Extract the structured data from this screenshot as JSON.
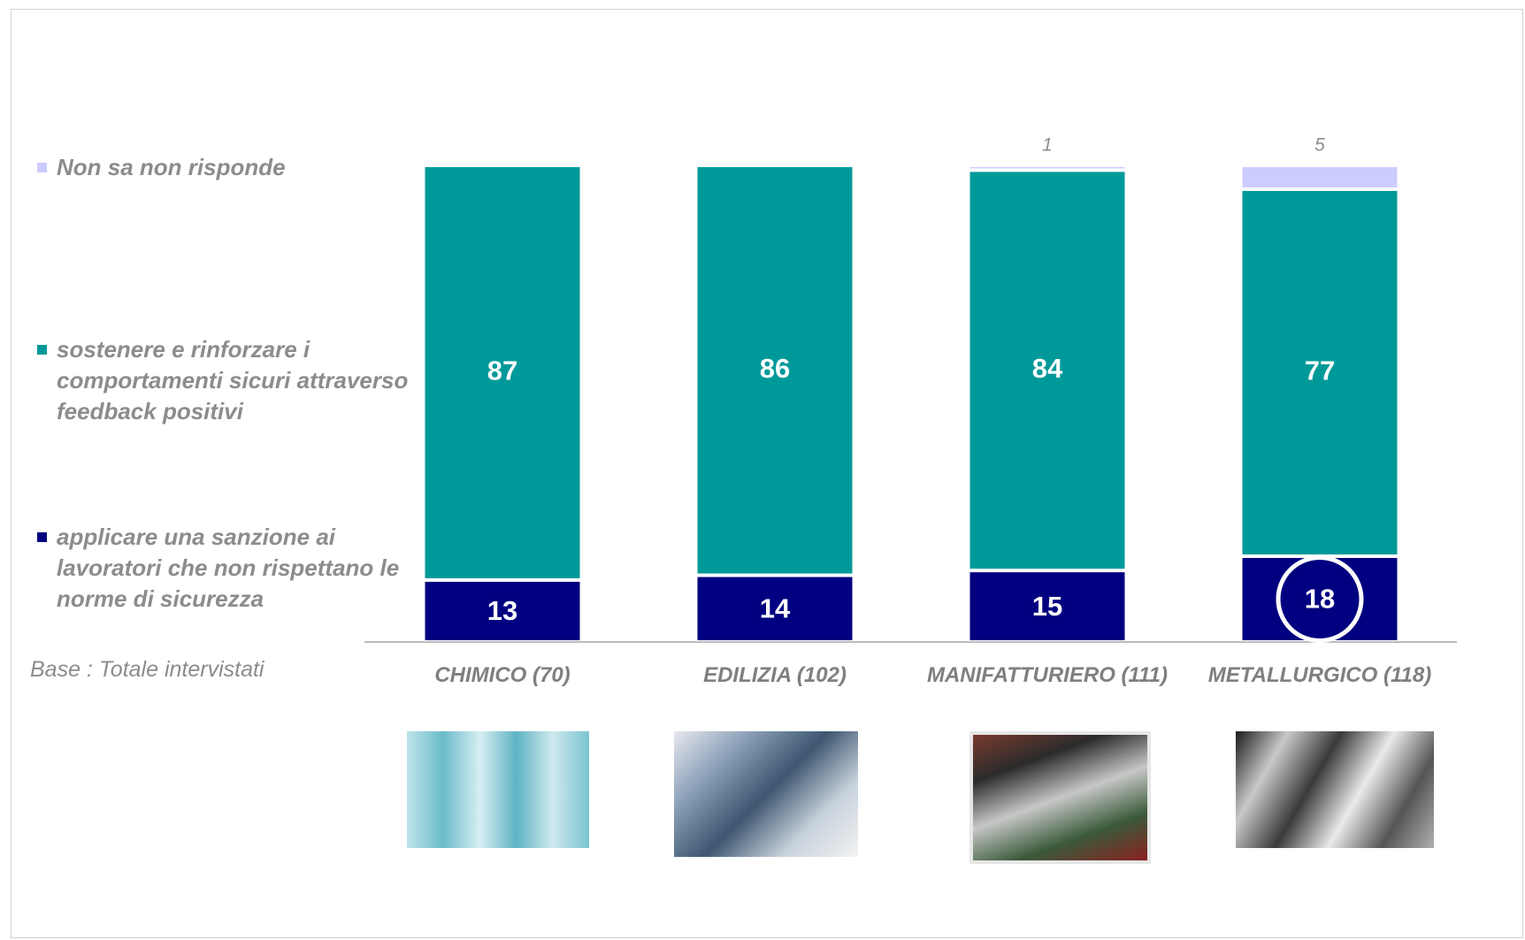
{
  "chart_data": {
    "type": "stacked-bar",
    "categories": [
      "CHIMICO (70)",
      "EDILIZIA (102)",
      "MANIFATTURIERO (111)",
      "METALLURGICO (118)"
    ],
    "series": [
      {
        "name": "applicare una sanzione ai lavoratori che non rispettano le norme di sicurezza",
        "color": "#000080",
        "values": [
          13,
          14,
          15,
          18
        ]
      },
      {
        "name": "sostenere e rinforzare i comportamenti sicuri attraverso feedback positivi",
        "color": "#009999",
        "values": [
          87,
          86,
          84,
          77
        ]
      },
      {
        "name": "Non sa non risponde",
        "color": "#ccccff",
        "values": [
          null,
          null,
          1,
          5
        ]
      }
    ],
    "ylim": [
      0,
      100
    ],
    "note": "Base : Totale intervistati"
  }
}
